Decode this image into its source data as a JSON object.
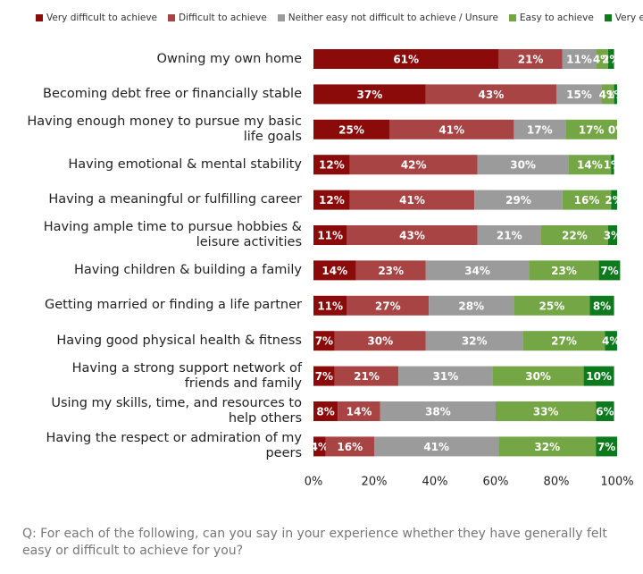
{
  "chart_data": {
    "type": "stacked_bar_horizontal",
    "categories": [
      "Owning my own home",
      "Becoming debt free or financially stable",
      "Having enough money to pursue my basic life goals",
      "Having emotional & mental stability",
      "Having a meaningful or fulfilling career",
      "Having ample time to pursue hobbies & leisure activities",
      "Having children & building a family",
      "Getting married or finding a life partner",
      "Having good physical health & fitness",
      "Having a strong support network of friends and family",
      "Using my skills, time, and resources to help others",
      "Having the respect or admiration of my peers"
    ],
    "series": [
      {
        "name": "Very difficult to achieve",
        "color": "#8b0b0b",
        "values": [
          61,
          37,
          25,
          12,
          12,
          11,
          14,
          11,
          7,
          7,
          8,
          4
        ],
        "value_labels": [
          "61%",
          "37%",
          "25%",
          "12%",
          "12%",
          "11%",
          "14%",
          "11%",
          "7%",
          "7%",
          "8%",
          "4%"
        ]
      },
      {
        "name": "Difficult to achieve",
        "color": "#a84444",
        "values": [
          21,
          43,
          41,
          42,
          41,
          43,
          23,
          27,
          30,
          21,
          14,
          16
        ],
        "value_labels": [
          "21%",
          "43%",
          "41%",
          "42%",
          "41%",
          "43%",
          "23%",
          "27%",
          "30%",
          "21%",
          "14%",
          "16%"
        ]
      },
      {
        "name": "Neither easy not difficult to achieve / Unsure",
        "color": "#9b9b9b",
        "values": [
          11,
          15,
          17,
          30,
          29,
          21,
          34,
          28,
          32,
          31,
          38,
          41
        ],
        "value_labels": [
          "11%",
          "15%",
          "17%",
          "30%",
          "29%",
          "21%",
          "34%",
          "28%",
          "32%",
          "31%",
          "38%",
          "41%"
        ]
      },
      {
        "name": "Easy to achieve",
        "color": "#74a646",
        "values": [
          4,
          4,
          17,
          14,
          16,
          22,
          23,
          25,
          27,
          30,
          33,
          32
        ],
        "value_labels": [
          "4%",
          "4%",
          "17%",
          "14%",
          "16%",
          "22%",
          "23%",
          "25%",
          "27%",
          "30%",
          "33%",
          "32%"
        ]
      },
      {
        "name": "Very easy to achieve",
        "color": "#0e7a1e",
        "values": [
          2,
          1,
          0,
          1,
          2,
          3,
          7,
          8,
          4,
          10,
          6,
          7
        ],
        "value_labels": [
          "2%",
          "1%",
          "0%",
          "1%",
          "2%",
          "3%",
          "7%",
          "8%",
          "4%",
          "10%",
          "6%",
          "7%"
        ]
      }
    ],
    "xlim": [
      0,
      100
    ],
    "xticks": [
      {
        "value": 0,
        "label": "0%"
      },
      {
        "value": 20,
        "label": "20%"
      },
      {
        "value": 40,
        "label": "40%"
      },
      {
        "value": 60,
        "label": "60%"
      },
      {
        "value": 80,
        "label": "80%"
      },
      {
        "value": 100,
        "label": "100%"
      }
    ],
    "grid": false,
    "legend": "top",
    "note": "Q: For each of the following, can you say in your experience whether they have generally felt easy or difficult to achieve for you?"
  }
}
